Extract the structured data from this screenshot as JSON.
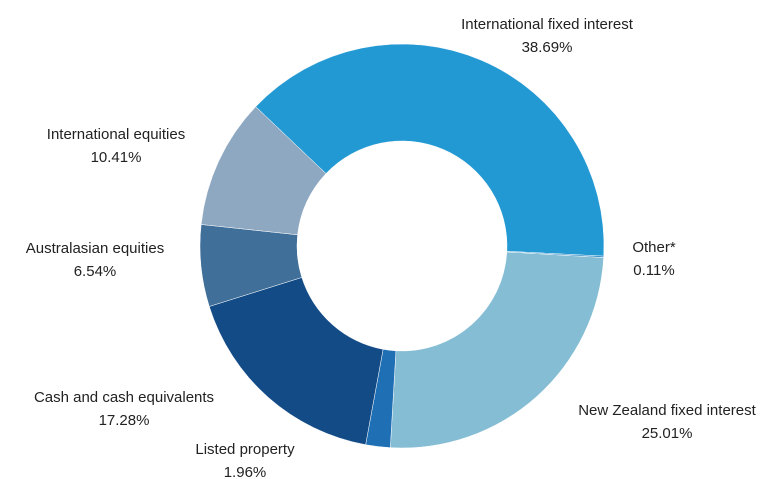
{
  "chart_data": {
    "type": "donut",
    "categories": [
      "International fixed interest",
      "Other*",
      "New Zealand fixed interest",
      "Listed property",
      "Cash and cash equivalents",
      "Australasian equities",
      "International equities"
    ],
    "values": [
      38.69,
      0.11,
      25.01,
      1.96,
      17.28,
      6.54,
      10.41
    ],
    "value_labels": [
      "38.69%",
      "0.11%",
      "25.01%",
      "1.96%",
      "17.28%",
      "6.54%",
      "10.41%"
    ],
    "colors": [
      "#2399d3",
      "#1f7fc0",
      "#85bdd4",
      "#1f6fb5",
      "#134b87",
      "#406f99",
      "#8fa8c2"
    ]
  }
}
